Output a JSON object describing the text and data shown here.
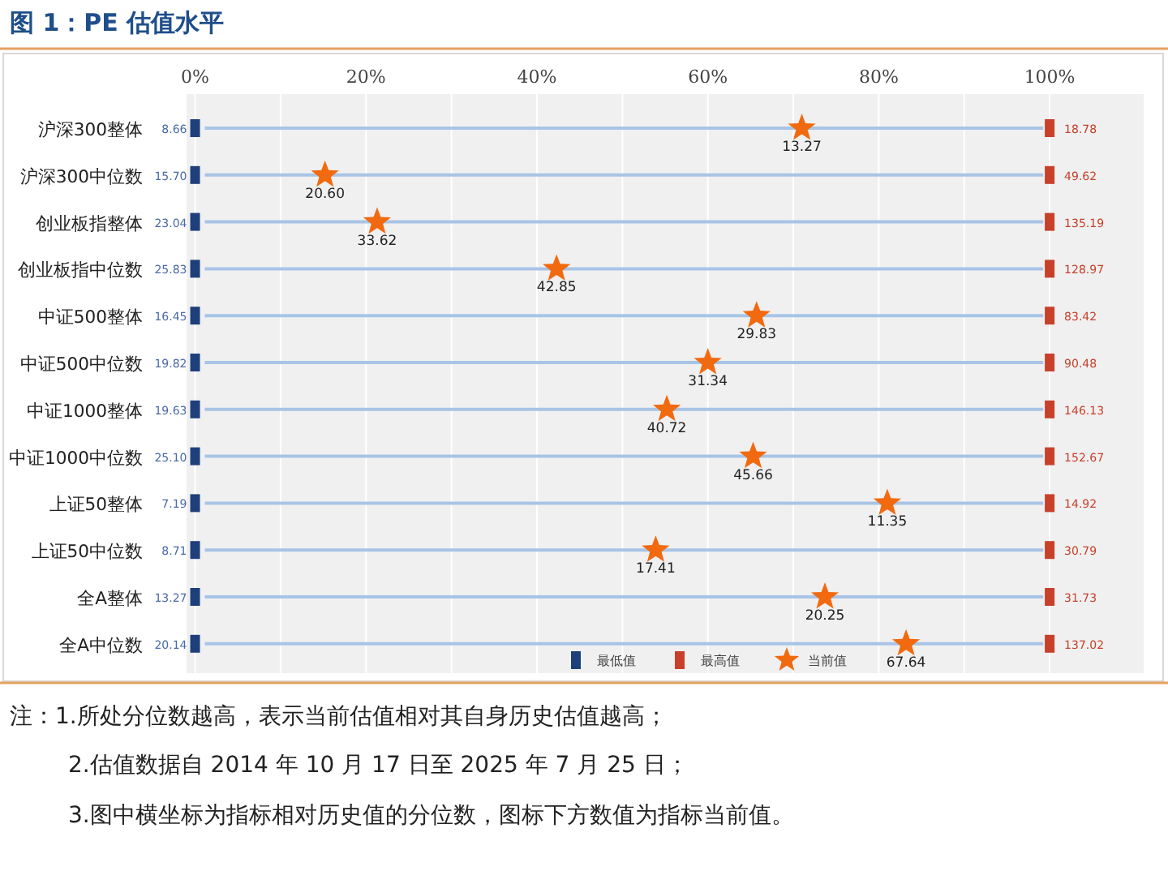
{
  "chart_data": {
    "type": "scatter",
    "title": "图 1：PE 估值水平",
    "orientation": "horizontal",
    "categories": [
      "沪深300整体",
      "沪深300中位数",
      "创业板指整体",
      "创业板指中位数",
      "中证500整体",
      "中证500中位数",
      "中证1000整体",
      "中证1000中位数",
      "上证50整体",
      "上证50中位数",
      "全A整体",
      "全A中位数"
    ],
    "xlim": [
      -1,
      111
    ],
    "xticks": [
      {
        "value": 0,
        "label": "0%"
      },
      {
        "value": 10,
        "label": null
      },
      {
        "value": 20,
        "label": "20%"
      },
      {
        "value": 30,
        "label": null
      },
      {
        "value": 40,
        "label": "40%"
      },
      {
        "value": 50,
        "label": null
      },
      {
        "value": 60,
        "label": "60%"
      },
      {
        "value": 70,
        "label": null
      },
      {
        "value": 80,
        "label": "80%"
      },
      {
        "value": 90,
        "label": null
      },
      {
        "value": 100,
        "label": "100%"
      }
    ],
    "grid": true,
    "legend": "bottom right",
    "series": [
      {
        "name": "最低值",
        "color": "#1f3f7a",
        "marker": "square",
        "values": [
          0,
          0,
          0,
          0,
          0,
          0,
          0,
          0,
          0,
          0,
          0,
          0
        ]
      },
      {
        "name": "最高值",
        "color": "#c8402a",
        "marker": "square",
        "values": [
          100,
          100,
          100,
          100,
          100,
          100,
          100,
          100,
          100,
          100,
          100,
          100
        ]
      },
      {
        "name": "当前值",
        "color": "#f26a10",
        "marker": "star",
        "values": [
          71.0,
          15.2,
          21.3,
          42.3,
          65.7,
          60.0,
          55.2,
          65.3,
          81.0,
          53.9,
          73.7,
          83.2
        ]
      }
    ],
    "annotations": [
      {
        "text": "8.66",
        "x": 0,
        "y": "沪深300整体"
      },
      {
        "text": "15.70",
        "x": 0,
        "y": "沪深300中位数"
      },
      {
        "text": "23.04",
        "x": 0,
        "y": "创业板指整体"
      },
      {
        "text": "25.83",
        "x": 0,
        "y": "创业板指中位数"
      },
      {
        "text": "16.45",
        "x": 0,
        "y": "中证500整体"
      },
      {
        "text": "19.82",
        "x": 0,
        "y": "中证500中位数"
      },
      {
        "text": "19.63",
        "x": 0,
        "y": "中证1000整体"
      },
      {
        "text": "25.10",
        "x": 0,
        "y": "中证1000中位数"
      },
      {
        "text": "7.19",
        "x": 0,
        "y": "上证50整体"
      },
      {
        "text": "8.71",
        "x": 0,
        "y": "上证50中位数"
      },
      {
        "text": "13.27",
        "x": 0,
        "y": "全A整体"
      },
      {
        "text": "20.14",
        "x": 0,
        "y": "全A中位数"
      },
      {
        "text": "18.78",
        "x": 100,
        "y": "沪深300整体"
      },
      {
        "text": "49.62",
        "x": 100,
        "y": "沪深300中位数"
      },
      {
        "text": "135.19",
        "x": 100,
        "y": "创业板指整体"
      },
      {
        "text": "128.97",
        "x": 100,
        "y": "创业板指中位数"
      },
      {
        "text": "83.42",
        "x": 100,
        "y": "中证500整体"
      },
      {
        "text": "90.48",
        "x": 100,
        "y": "中证500中位数"
      },
      {
        "text": "146.13",
        "x": 100,
        "y": "中证1000整体"
      },
      {
        "text": "152.67",
        "x": 100,
        "y": "中证1000中位数"
      },
      {
        "text": "14.92",
        "x": 100,
        "y": "上证50整体"
      },
      {
        "text": "30.79",
        "x": 100,
        "y": "上证50中位数"
      },
      {
        "text": "31.73",
        "x": 100,
        "y": "全A整体"
      },
      {
        "text": "137.02",
        "x": 100,
        "y": "全A中位数"
      },
      {
        "text": "13.27",
        "x": 71.0,
        "y": "沪深300整体"
      },
      {
        "text": "20.60",
        "x": 15.2,
        "y": "沪深300中位数"
      },
      {
        "text": "33.62",
        "x": 21.3,
        "y": "创业板指整体"
      },
      {
        "text": "42.85",
        "x": 42.3,
        "y": "创业板指中位数"
      },
      {
        "text": "29.83",
        "x": 65.7,
        "y": "中证500整体"
      },
      {
        "text": "31.34",
        "x": 60.0,
        "y": "中证500中位数"
      },
      {
        "text": "40.72",
        "x": 55.2,
        "y": "中证1000整体"
      },
      {
        "text": "45.66",
        "x": 65.3,
        "y": "中证1000中位数"
      },
      {
        "text": "11.35",
        "x": 81.0,
        "y": "上证50整体"
      },
      {
        "text": "17.41",
        "x": 53.9,
        "y": "上证50中位数"
      },
      {
        "text": "20.25",
        "x": 73.7,
        "y": "全A整体"
      },
      {
        "text": "67.64",
        "x": 83.2,
        "y": "全A中位数"
      },
      "注：1.所处分位数越高，表示当前估值相对其自身历史估值越高；",
      "2.估值数据自 2014 年 10 月 17 日至 2025 年 7 月 25 日；",
      "3.图中横坐标为指标相对历史值的分位数，图标下方数值为指标当前值。"
    ]
  }
}
